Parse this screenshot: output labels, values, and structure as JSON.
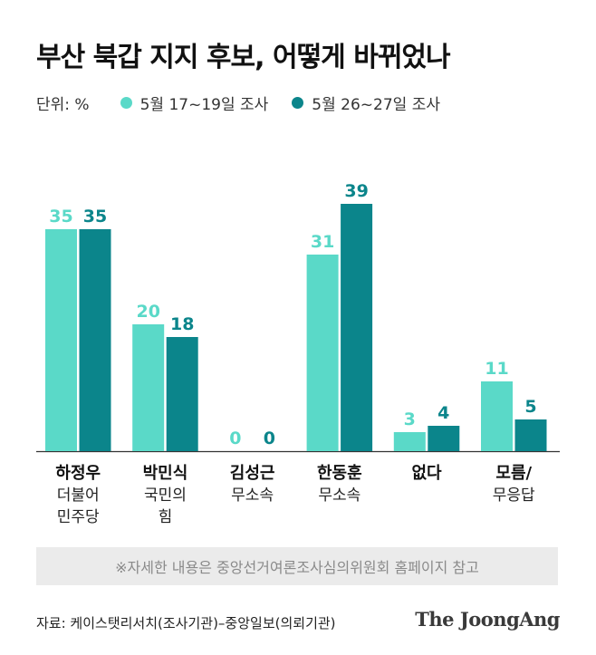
{
  "title": "부산 북갑 지지 후보, 어떻게 바뀌었나",
  "unit_label": "단위: %",
  "colors": {
    "series1": "#5ad9c8",
    "series2": "#0b858b",
    "axis": "#333333"
  },
  "chart_data": {
    "type": "bar",
    "title": "부산 북갑 지지 후보, 어떻게 바뀌었나",
    "xlabel": "",
    "ylabel": "단위: %",
    "ylim": [
      0,
      45
    ],
    "grid": false,
    "legend_position": "top-left",
    "categories": [
      {
        "name": "하정우",
        "sub": [
          "더불어",
          "민주당"
        ]
      },
      {
        "name": "박민식",
        "sub": [
          "국민의",
          "힘"
        ]
      },
      {
        "name": "김성근",
        "sub": [
          "무소속"
        ]
      },
      {
        "name": "한동훈",
        "sub": [
          "무소속"
        ]
      },
      {
        "name": "없다",
        "sub": []
      },
      {
        "name": "모름/",
        "sub": [
          "무응답"
        ]
      }
    ],
    "series": [
      {
        "name": "5월 17~19일 조사",
        "values": [
          35,
          20,
          0,
          31,
          3,
          11
        ]
      },
      {
        "name": "5월 26~27일 조사",
        "values": [
          35,
          18,
          0,
          39,
          4,
          5
        ]
      }
    ]
  },
  "note": "※자세한 내용은 중앙선거여론조사심의위원회 홈페이지 참고",
  "source": "자료: 케이스탯리서치(조사기관)–중앙일보(의뢰기관)",
  "logo": "The JoongAng"
}
